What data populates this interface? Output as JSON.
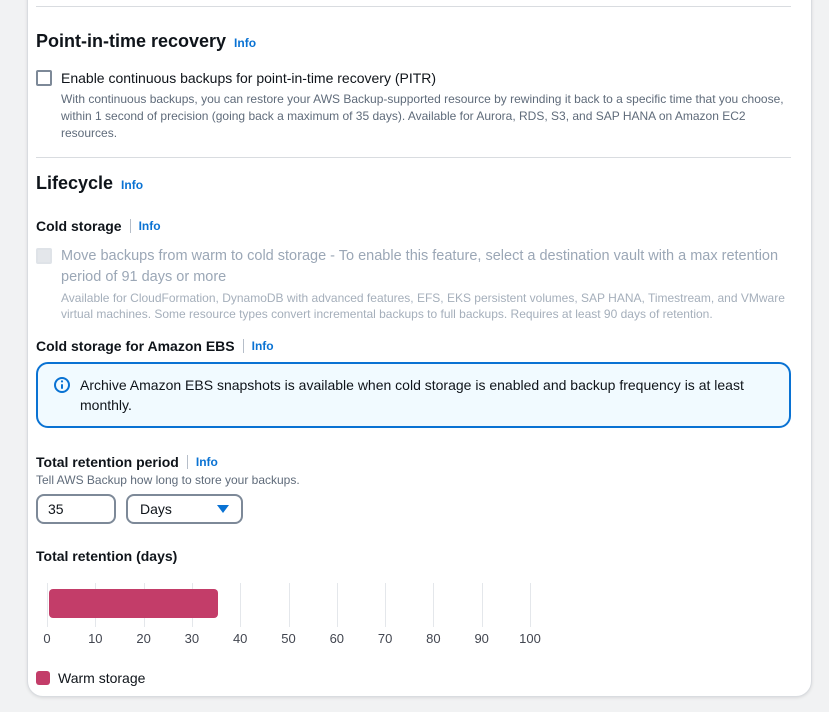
{
  "colors": {
    "accent_blue": "#0972d3",
    "warm_storage_bar": "#c33d69",
    "alert_background": "#f1faff",
    "disabled_text": "#9ba7b6"
  },
  "pitr": {
    "title": "Point-in-time recovery",
    "info_label": "Info",
    "checkbox_label": "Enable continuous backups for point-in-time recovery (PITR)",
    "checkbox_checked": false,
    "description": "With continuous backups, you can restore your AWS Backup-supported resource by rewinding it back to a specific time that you choose, within 1 second of precision (going back a maximum of 35 days). Available for Aurora, RDS, S3, and SAP HANA on Amazon EC2 resources."
  },
  "lifecycle": {
    "title": "Lifecycle",
    "info_label": "Info",
    "cold_storage": {
      "label": "Cold storage",
      "info_label": "Info",
      "checkbox_label": "Move backups from warm to cold storage - To enable this feature, select a destination vault with a max retention period of 91 days or more",
      "checkbox_disabled": true,
      "checkbox_checked": false,
      "description": "Available for CloudFormation, DynamoDB with advanced features, EFS, EKS persistent volumes, SAP HANA, Timestream, and VMware virtual machines. Some resource types convert incremental backups to full backups. Requires at least 90 days of retention."
    },
    "cold_storage_ebs": {
      "label": "Cold storage for Amazon EBS",
      "info_label": "Info",
      "alert_text": "Archive Amazon EBS snapshots is available when cold storage is enabled and backup frequency is at least monthly."
    },
    "total_retention": {
      "label": "Total retention period",
      "info_label": "Info",
      "description": "Tell AWS Backup how long to store your backups.",
      "value": "35",
      "unit": "Days"
    }
  },
  "chart_data": {
    "type": "bar",
    "orientation": "horizontal",
    "title": "Total retention (days)",
    "series": [
      {
        "name": "Warm storage",
        "value": 35,
        "color": "#c33d69"
      }
    ],
    "xlim": [
      0,
      100
    ],
    "xticks": [
      0,
      10,
      20,
      30,
      40,
      50,
      60,
      70,
      80,
      90,
      100
    ],
    "grid": true,
    "legend_position": "bottom",
    "legend": [
      {
        "label": "Warm storage",
        "color": "#c33d69"
      }
    ]
  }
}
